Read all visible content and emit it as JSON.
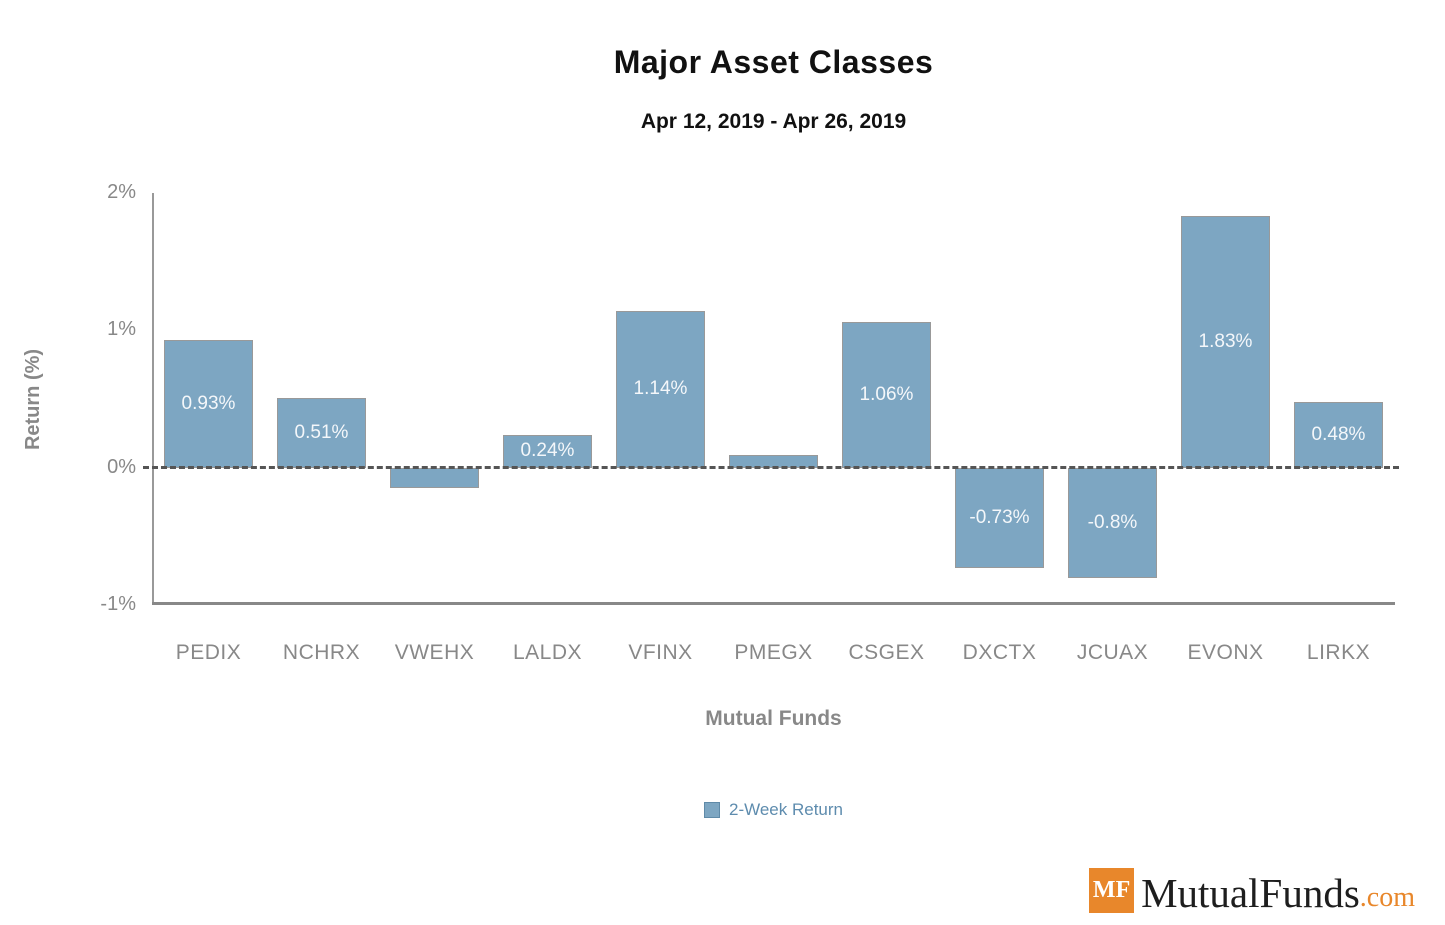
{
  "chart_data": {
    "type": "bar",
    "title": "Major Asset Classes",
    "subtitle": "Apr 12, 2019 - Apr 26, 2019",
    "xlabel": "Mutual Funds",
    "ylabel": "Return (%)",
    "categories": [
      "PEDIX",
      "NCHRX",
      "VWEHX",
      "LALDX",
      "VFINX",
      "PMEGX",
      "CSGEX",
      "DXCTX",
      "JCUAX",
      "EVONX",
      "LIRKX"
    ],
    "series": [
      {
        "name": "2-Week Return",
        "values": [
          0.93,
          0.51,
          -0.15,
          0.24,
          1.14,
          0.09,
          1.06,
          -0.73,
          -0.8,
          1.83,
          0.48
        ],
        "labels": [
          "0.93%",
          "0.51%",
          "",
          "0.24%",
          "1.14%",
          "",
          "1.06%",
          "-0.73%",
          "-0.8%",
          "1.83%",
          "0.48%"
        ]
      }
    ],
    "ylim": [
      -1,
      2
    ],
    "yticks": [
      {
        "value": 2,
        "label": "2%"
      },
      {
        "value": 1,
        "label": "1%"
      },
      {
        "value": 0,
        "label": "0%"
      },
      {
        "value": -1,
        "label": "-1%"
      }
    ],
    "grid": false,
    "zero_line": "dashed",
    "legend_position": "bottom"
  },
  "colors": {
    "bar": "#7da6c2",
    "bar_border": "#999999",
    "bar_label": "#f4f7fa",
    "axis": "#888888",
    "zero_line": "#555555",
    "tick_label": "#888888",
    "axis_title": "#888888",
    "title_text": "#111111",
    "legend_text": "#5e8cae",
    "logo_orange": "#e8872b",
    "logo_text": "#1e1e1e"
  },
  "logo": {
    "mf": "MF",
    "name": "MutualFunds",
    "tld": ".com"
  }
}
